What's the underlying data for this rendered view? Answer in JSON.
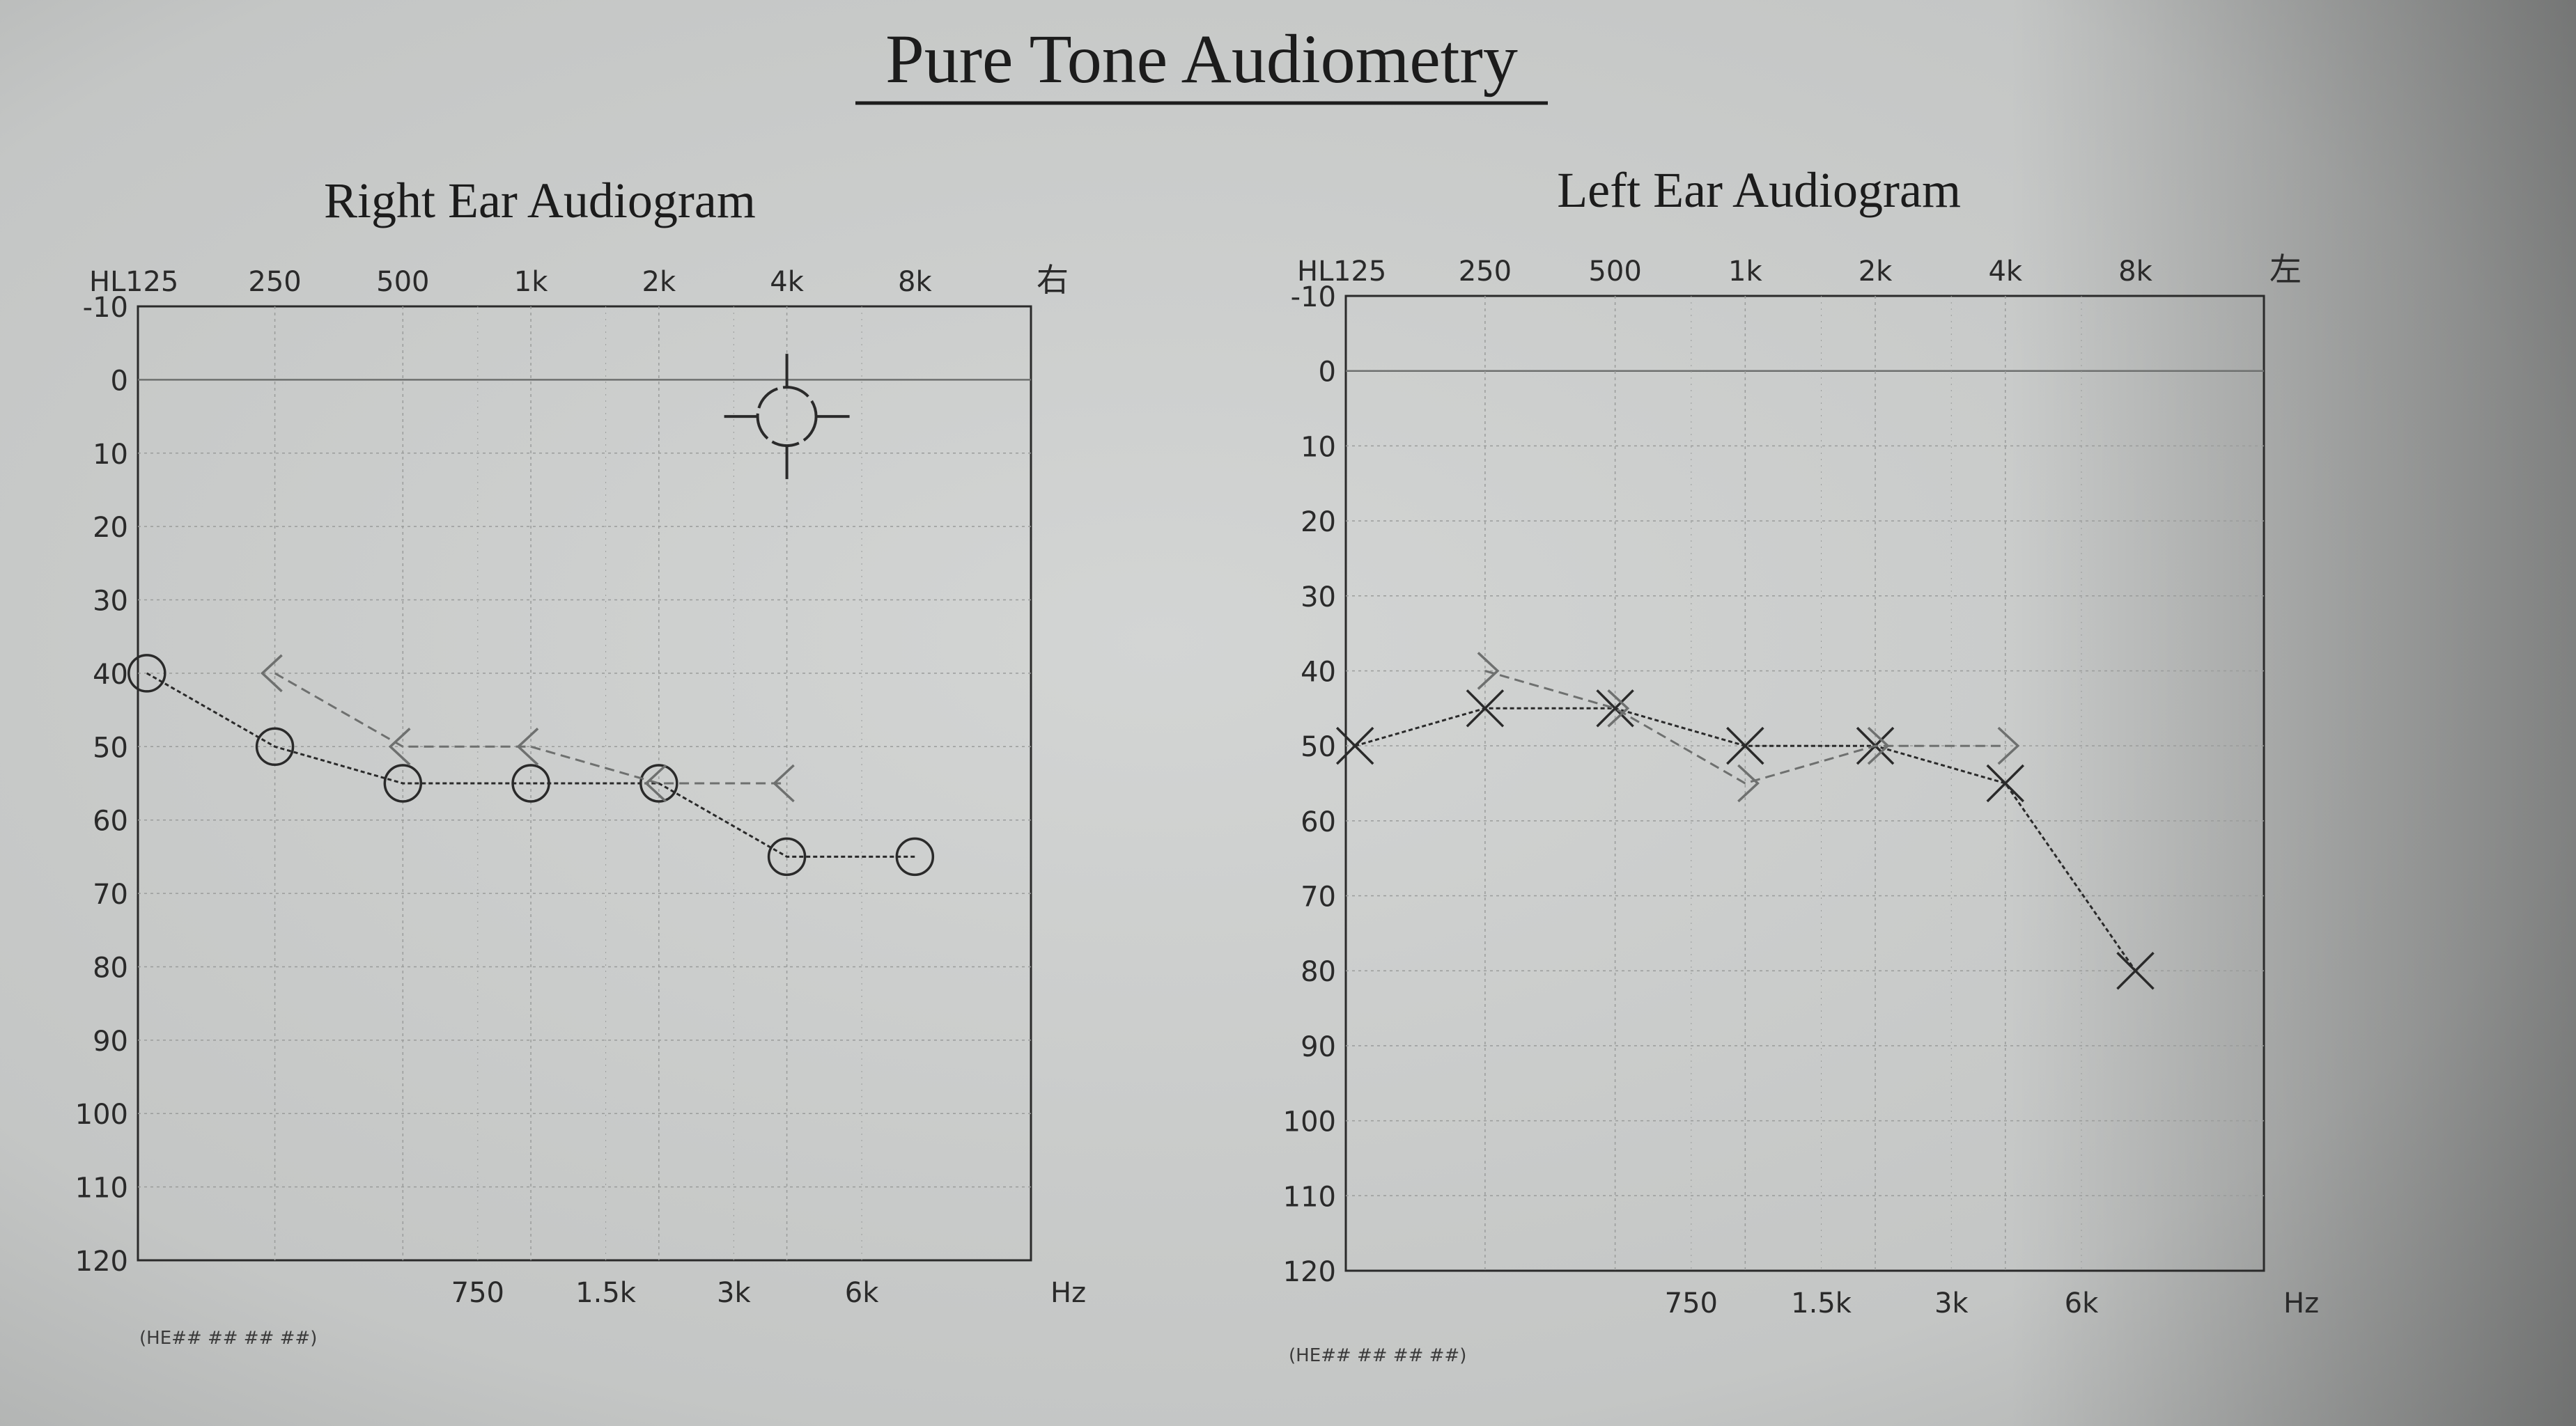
{
  "page": {
    "title": "Pure Tone Audiometry",
    "footnote": "(HE## ## ## ##)"
  },
  "chart_data": [
    {
      "type": "line",
      "title": "Right Ear Audiogram",
      "corner_label": "HL",
      "ear_mark": "右",
      "unit_label": "Hz",
      "top_ticks": [
        "125",
        "250",
        "500",
        "1k",
        "2k",
        "4k",
        "8k"
      ],
      "bottom_ticks": [
        "750",
        "1.5k",
        "3k",
        "6k"
      ],
      "ylim": [
        -10,
        120
      ],
      "y_ticks": [
        -10,
        0,
        10,
        20,
        30,
        40,
        50,
        60,
        70,
        80,
        90,
        100,
        110,
        120
      ],
      "grid": true,
      "series": [
        {
          "symbol": "circle",
          "x": [
            125,
            250,
            500,
            1000,
            2000,
            4000,
            8000
          ],
          "y": [
            40,
            50,
            55,
            55,
            55,
            65,
            65
          ]
        },
        {
          "symbol": "bracket-left",
          "x": [
            250,
            500,
            1000,
            2000,
            4000
          ],
          "y": [
            40,
            50,
            50,
            55,
            55
          ]
        }
      ],
      "annotations": [
        {
          "symbol": "crosshair-circle",
          "x": 4000,
          "y": 5
        }
      ]
    },
    {
      "type": "line",
      "title": "Left Ear Audiogram",
      "corner_label": "HL",
      "ear_mark": "左",
      "unit_label": "Hz",
      "top_ticks": [
        "125",
        "250",
        "500",
        "1k",
        "2k",
        "4k",
        "8k"
      ],
      "bottom_ticks": [
        "750",
        "1.5k",
        "3k",
        "6k"
      ],
      "ylim": [
        -10,
        120
      ],
      "y_ticks": [
        -10,
        0,
        10,
        20,
        30,
        40,
        50,
        60,
        70,
        80,
        90,
        100,
        110,
        120
      ],
      "grid": true,
      "series": [
        {
          "symbol": "cross",
          "x": [
            125,
            250,
            500,
            1000,
            2000,
            4000,
            8000
          ],
          "y": [
            50,
            45,
            45,
            50,
            50,
            55,
            80
          ]
        },
        {
          "symbol": "bracket-right",
          "x": [
            250,
            500,
            1000,
            2000,
            4000
          ],
          "y": [
            40,
            45,
            55,
            50,
            50
          ]
        }
      ]
    }
  ]
}
